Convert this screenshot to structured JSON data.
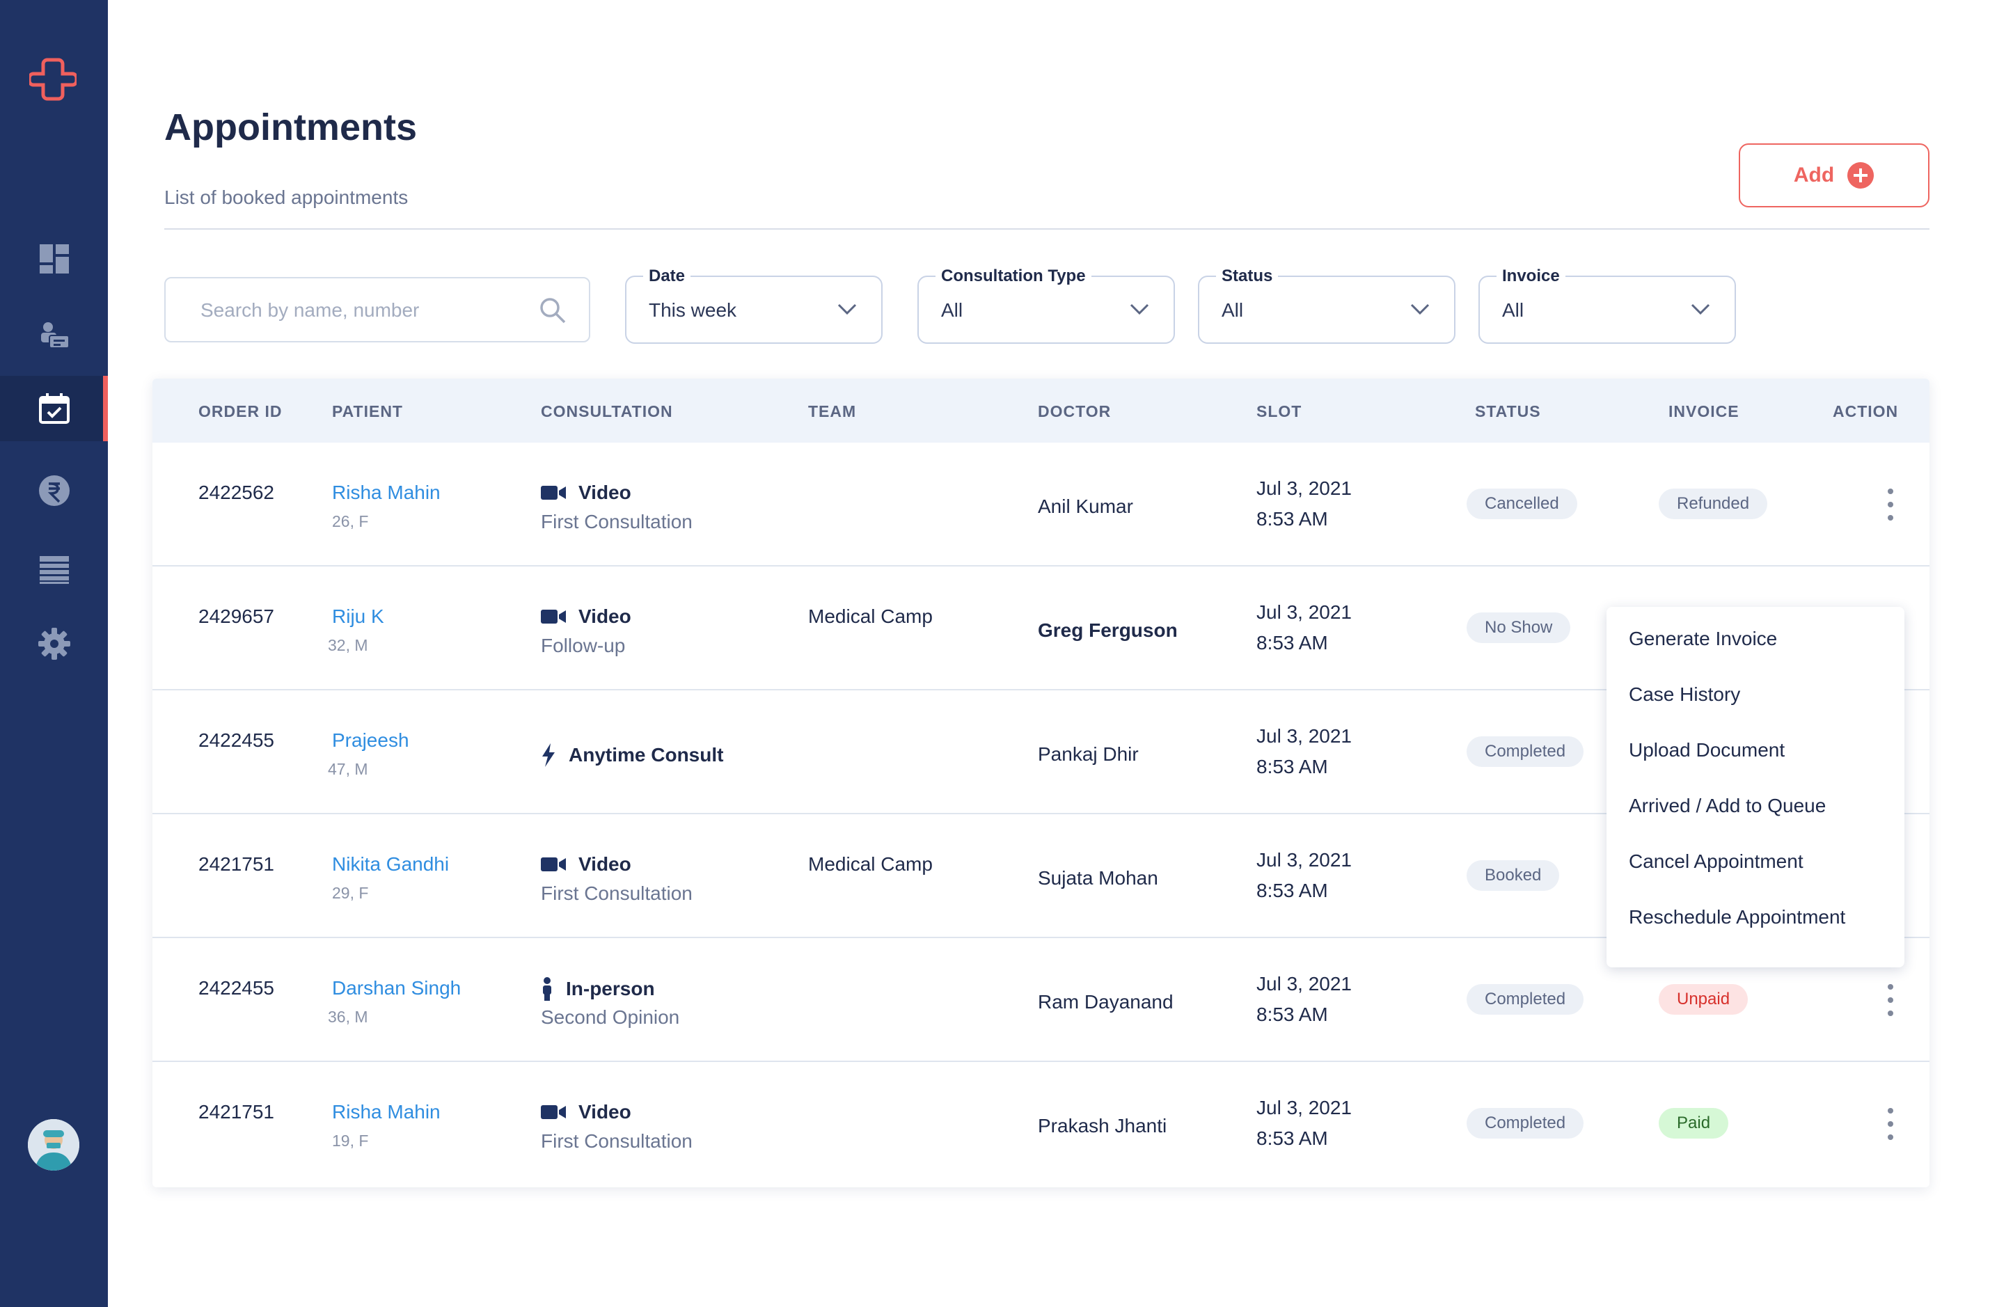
{
  "sidebar": {
    "logo_icon": "medical-cross-logo",
    "items": [
      {
        "name": "dashboard",
        "icon": "dashboard-icon"
      },
      {
        "name": "patients",
        "icon": "patients-icon"
      },
      {
        "name": "appointments",
        "icon": "calendar-check-icon",
        "active": true
      },
      {
        "name": "payments",
        "icon": "rupee-icon"
      },
      {
        "name": "reports",
        "icon": "list-icon"
      },
      {
        "name": "settings",
        "icon": "gear-icon"
      }
    ],
    "avatar_icon": "doctor-avatar"
  },
  "header": {
    "title": "Appointments",
    "subtitle": "List of booked appointments",
    "add_label": "Add"
  },
  "filters": {
    "search_placeholder": "Search by name, number",
    "date": {
      "label": "Date",
      "value": "This week"
    },
    "consultation_type": {
      "label": "Consultation Type",
      "value": "All"
    },
    "status": {
      "label": "Status",
      "value": "All"
    },
    "invoice": {
      "label": "Invoice",
      "value": "All"
    }
  },
  "table": {
    "columns": [
      "ORDER ID",
      "PATIENT",
      "CONSULTATION",
      "TEAM",
      "DOCTOR",
      "SLOT",
      "STATUS",
      "INVOICE",
      "ACTION"
    ],
    "rows": [
      {
        "order_id": "2422562",
        "patient": "Risha Mahin",
        "meta": "26, F",
        "consult_icon": "video-icon",
        "consult_type": "Video",
        "consult_sub": "First Consultation",
        "team": "",
        "doctor": "Anil Kumar",
        "date": "Jul 3, 2021",
        "time": "8:53 AM",
        "status": "Cancelled",
        "invoice": "Refunded"
      },
      {
        "order_id": "2429657",
        "patient": "Riju K",
        "meta": "32, M",
        "consult_icon": "video-icon",
        "consult_type": "Video",
        "consult_sub": "Follow-up",
        "team": "Medical Camp",
        "doctor": "Greg Ferguson",
        "date": "Jul 3, 2021",
        "time": "8:53 AM",
        "status": "No Show",
        "invoice": ""
      },
      {
        "order_id": "2422455",
        "patient": "Prajeesh",
        "meta": "47, M",
        "consult_icon": "lightning-icon",
        "consult_type": "Anytime Consult",
        "consult_sub": "",
        "team": "",
        "doctor": "Pankaj Dhir",
        "date": "Jul 3, 2021",
        "time": "8:53 AM",
        "status": "Completed",
        "invoice": ""
      },
      {
        "order_id": "2421751",
        "patient": "Nikita Gandhi",
        "meta": "29, F",
        "consult_icon": "video-icon",
        "consult_type": "Video",
        "consult_sub": "First Consultation",
        "team": "Medical Camp",
        "doctor": "Sujata Mohan",
        "date": "Jul 3, 2021",
        "time": "8:53 AM",
        "status": "Booked",
        "invoice": ""
      },
      {
        "order_id": "2422455",
        "patient": "Darshan Singh",
        "meta": "36, M",
        "consult_icon": "person-icon",
        "consult_type": "In-person",
        "consult_sub": "Second Opinion",
        "team": "",
        "doctor": "Ram Dayanand",
        "date": "Jul 3, 2021",
        "time": "8:53 AM",
        "status": "Completed",
        "invoice": "Unpaid"
      },
      {
        "order_id": "2421751",
        "patient": "Risha Mahin",
        "meta": "19, F",
        "consult_icon": "video-icon",
        "consult_type": "Video",
        "consult_sub": "First Consultation",
        "team": "",
        "doctor": "Prakash Jhanti",
        "date": "Jul 3, 2021",
        "time": "8:53 AM",
        "status": "Completed",
        "invoice": "Paid"
      }
    ]
  },
  "action_menu": {
    "items": [
      "Generate Invoice",
      "Case History",
      "Upload Document",
      "Arrived / Add to Queue",
      "Cancel Appointment",
      "Reschedule Appointment"
    ]
  },
  "colors": {
    "sidebar": "#1f3364",
    "accent": "#ee6560",
    "link": "#2f8de0"
  }
}
